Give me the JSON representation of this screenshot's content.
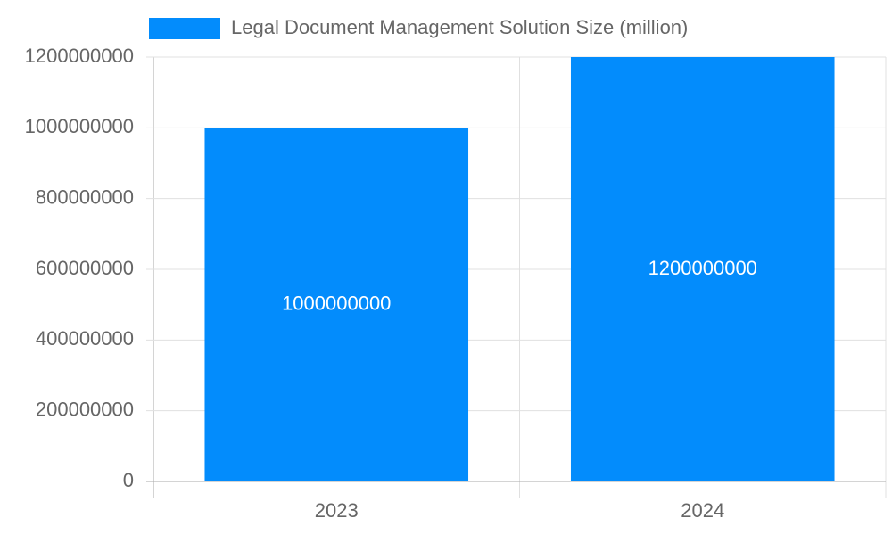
{
  "chart_data": {
    "type": "bar",
    "categories": [
      "2023",
      "2024"
    ],
    "series": [
      {
        "name": "Legal Document Management Solution Size (million)",
        "color": "#038cfc",
        "values": [
          1000000000,
          1200000000
        ]
      }
    ],
    "ylim": [
      0,
      1200000000
    ],
    "yticks": [
      0,
      200000000,
      400000000,
      600000000,
      800000000,
      1000000000,
      1200000000
    ],
    "grid": true,
    "legend": "top",
    "data_labels": true
  }
}
